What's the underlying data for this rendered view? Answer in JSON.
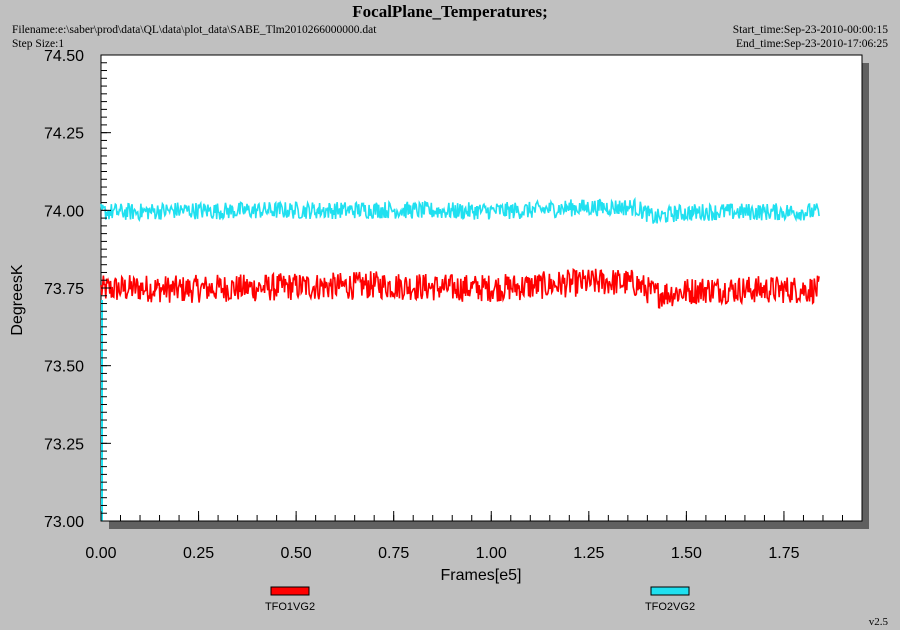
{
  "header": {
    "title": "FocalPlane_Temperatures;",
    "filename": "Filename:e:\\saber\\prod\\data\\QL\\data\\plot_data\\SABE_Tlm2010266000000.dat",
    "step_size": "Step Size:1",
    "start_time": "Start_time:Sep-23-2010-00:00:15",
    "end_time": "End_time:Sep-23-2010-17:06:25"
  },
  "version": "v2.5",
  "chart_data": {
    "type": "line",
    "title": "FocalPlane_Temperatures;",
    "xlabel": "Frames[e5]",
    "ylabel": "DegreesK",
    "xlim": [
      0,
      1.95
    ],
    "ylim": [
      73.0,
      74.5
    ],
    "x_ticks": [
      "0.00",
      "0.25",
      "0.50",
      "0.75",
      "1.00",
      "1.25",
      "1.50",
      "1.75"
    ],
    "y_ticks": [
      "73.00",
      "73.25",
      "73.50",
      "73.75",
      "74.00",
      "74.25",
      "74.50"
    ],
    "grid": false,
    "legend_position": "bottom",
    "series": [
      {
        "name": "TFO1VG2",
        "color": "#ff0000",
        "x": [
          0.0,
          0.1,
          0.2,
          0.3,
          0.4,
          0.5,
          0.6,
          0.7,
          0.8,
          0.9,
          1.0,
          1.1,
          1.2,
          1.3,
          1.37,
          1.42,
          1.47,
          1.55,
          1.65,
          1.75,
          1.84
        ],
        "y": [
          73.745,
          73.75,
          73.745,
          73.75,
          73.75,
          73.755,
          73.755,
          73.76,
          73.755,
          73.75,
          73.75,
          73.755,
          73.765,
          73.77,
          73.765,
          73.73,
          73.735,
          73.745,
          73.745,
          73.745,
          73.745
        ],
        "band": 0.045
      },
      {
        "name": "TFO2VG2",
        "color": "#20e0f0",
        "x": [
          0.0,
          0.1,
          0.2,
          0.3,
          0.4,
          0.5,
          0.6,
          0.7,
          0.8,
          0.9,
          1.0,
          1.1,
          1.2,
          1.3,
          1.37,
          1.42,
          1.47,
          1.55,
          1.65,
          1.75,
          1.84
        ],
        "y": [
          73.995,
          73.995,
          74.0,
          73.998,
          74.0,
          74.0,
          74.0,
          74.002,
          74.0,
          73.998,
          73.998,
          74.0,
          74.008,
          74.01,
          74.01,
          73.975,
          73.99,
          73.995,
          73.995,
          73.995,
          73.995
        ],
        "band": 0.028
      }
    ]
  }
}
